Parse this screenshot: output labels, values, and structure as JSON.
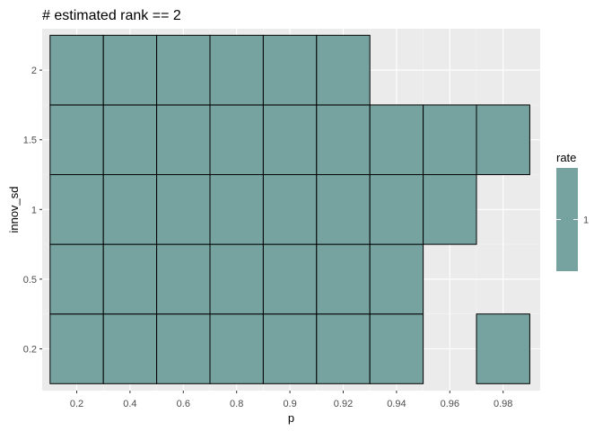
{
  "chart_data": {
    "type": "heatmap",
    "title": "# estimated rank == 2",
    "xlabel": "p",
    "ylabel": "innov_sd",
    "x_categories": [
      "0.2",
      "0.4",
      "0.6",
      "0.8",
      "0.9",
      "0.92",
      "0.94",
      "0.96",
      "0.98"
    ],
    "y_categories": [
      "0.2",
      "0.5",
      "1",
      "1.5",
      "2"
    ],
    "fill_color": "#76a3a0",
    "panel_background": "#ebebeb",
    "cells": [
      {
        "p": "0.2",
        "innov_sd": "0.2",
        "rate": 1
      },
      {
        "p": "0.4",
        "innov_sd": "0.2",
        "rate": 1
      },
      {
        "p": "0.6",
        "innov_sd": "0.2",
        "rate": 1
      },
      {
        "p": "0.8",
        "innov_sd": "0.2",
        "rate": 1
      },
      {
        "p": "0.9",
        "innov_sd": "0.2",
        "rate": 1
      },
      {
        "p": "0.92",
        "innov_sd": "0.2",
        "rate": 1
      },
      {
        "p": "0.94",
        "innov_sd": "0.2",
        "rate": 1
      },
      {
        "p": "0.98",
        "innov_sd": "0.2",
        "rate": 1
      },
      {
        "p": "0.2",
        "innov_sd": "0.5",
        "rate": 1
      },
      {
        "p": "0.4",
        "innov_sd": "0.5",
        "rate": 1
      },
      {
        "p": "0.6",
        "innov_sd": "0.5",
        "rate": 1
      },
      {
        "p": "0.8",
        "innov_sd": "0.5",
        "rate": 1
      },
      {
        "p": "0.9",
        "innov_sd": "0.5",
        "rate": 1
      },
      {
        "p": "0.92",
        "innov_sd": "0.5",
        "rate": 1
      },
      {
        "p": "0.94",
        "innov_sd": "0.5",
        "rate": 1
      },
      {
        "p": "0.2",
        "innov_sd": "1",
        "rate": 1
      },
      {
        "p": "0.4",
        "innov_sd": "1",
        "rate": 1
      },
      {
        "p": "0.6",
        "innov_sd": "1",
        "rate": 1
      },
      {
        "p": "0.8",
        "innov_sd": "1",
        "rate": 1
      },
      {
        "p": "0.9",
        "innov_sd": "1",
        "rate": 1
      },
      {
        "p": "0.92",
        "innov_sd": "1",
        "rate": 1
      },
      {
        "p": "0.94",
        "innov_sd": "1",
        "rate": 1
      },
      {
        "p": "0.96",
        "innov_sd": "1",
        "rate": 1
      },
      {
        "p": "0.2",
        "innov_sd": "1.5",
        "rate": 1
      },
      {
        "p": "0.4",
        "innov_sd": "1.5",
        "rate": 1
      },
      {
        "p": "0.6",
        "innov_sd": "1.5",
        "rate": 1
      },
      {
        "p": "0.8",
        "innov_sd": "1.5",
        "rate": 1
      },
      {
        "p": "0.9",
        "innov_sd": "1.5",
        "rate": 1
      },
      {
        "p": "0.92",
        "innov_sd": "1.5",
        "rate": 1
      },
      {
        "p": "0.94",
        "innov_sd": "1.5",
        "rate": 1
      },
      {
        "p": "0.96",
        "innov_sd": "1.5",
        "rate": 1
      },
      {
        "p": "0.98",
        "innov_sd": "1.5",
        "rate": 1
      },
      {
        "p": "0.2",
        "innov_sd": "2",
        "rate": 1
      },
      {
        "p": "0.4",
        "innov_sd": "2",
        "rate": 1
      },
      {
        "p": "0.6",
        "innov_sd": "2",
        "rate": 1
      },
      {
        "p": "0.8",
        "innov_sd": "2",
        "rate": 1
      },
      {
        "p": "0.9",
        "innov_sd": "2",
        "rate": 1
      },
      {
        "p": "0.92",
        "innov_sd": "2",
        "rate": 1
      }
    ],
    "legend": {
      "title": "rate",
      "position": "right",
      "breaks": [
        "1"
      ]
    }
  }
}
